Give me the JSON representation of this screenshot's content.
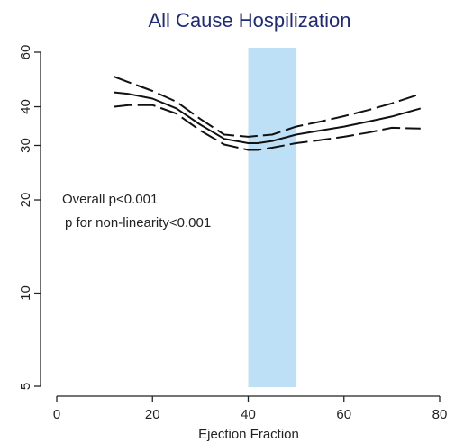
{
  "chart_data": {
    "type": "line",
    "title": "All Cause Hospilization",
    "xlabel": "Ejection Fraction",
    "ylabel": "",
    "y_scale": "log",
    "xlim": [
      0,
      80
    ],
    "ylim": [
      5,
      60
    ],
    "x_ticks": [
      0,
      20,
      40,
      60,
      80
    ],
    "y_ticks": [
      5,
      10,
      20,
      30,
      40,
      60
    ],
    "grid": false,
    "highlight_band": {
      "x_range": [
        40,
        50
      ],
      "color": "#bde0f7"
    },
    "annotations": [
      "Overall p<0.001",
      "p for non-linearity<0.001"
    ],
    "series": [
      {
        "style": "solid",
        "x": [
          12,
          15,
          20,
          25,
          30,
          35,
          40,
          42,
          45,
          50,
          55,
          60,
          65,
          70,
          76
        ],
        "y": [
          44.5,
          44,
          42.5,
          39.5,
          35,
          31.5,
          30.5,
          30.5,
          31,
          32.5,
          33.5,
          34.5,
          35.8,
          37.2,
          39.5
        ]
      },
      {
        "style": "dashed",
        "x": [
          12,
          15,
          20,
          25,
          30,
          35,
          40,
          42,
          45,
          50,
          55,
          60,
          65,
          70,
          76
        ],
        "y": [
          50,
          48,
          45,
          41.5,
          36.5,
          32.5,
          32,
          32.2,
          32.5,
          34.5,
          35.8,
          37.3,
          39,
          41,
          44
        ]
      },
      {
        "style": "dashed",
        "x": [
          12,
          15,
          20,
          25,
          30,
          35,
          40,
          42,
          45,
          50,
          55,
          60,
          65,
          70,
          76
        ],
        "y": [
          40,
          40.5,
          40.5,
          38,
          33.5,
          30.2,
          29,
          29,
          29.5,
          30.5,
          31.2,
          32,
          33,
          34.2,
          34
        ]
      }
    ]
  }
}
